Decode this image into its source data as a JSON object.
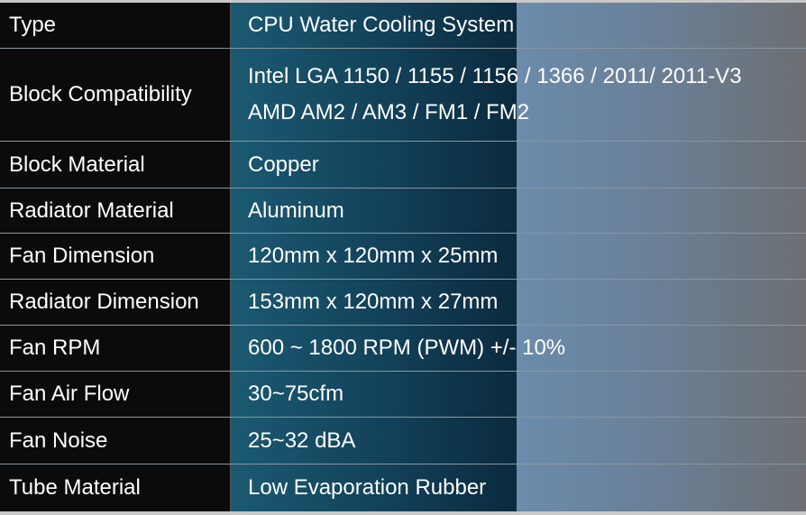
{
  "table": {
    "rows": [
      {
        "label": "Type",
        "lines": [
          "CPU Water Cooling System"
        ]
      },
      {
        "label": "Block Compatibility",
        "lines": [
          "Intel LGA 1150 / 1155 / 1156 / 1366 / 2011/ 2011-V3",
          "AMD AM2 / AM3 / FM1 / FM2"
        ]
      },
      {
        "label": "Block Material",
        "lines": [
          "Copper"
        ]
      },
      {
        "label": "Radiator Material",
        "lines": [
          "Aluminum"
        ]
      },
      {
        "label": "Fan Dimension",
        "lines": [
          "120mm x 120mm x 25mm"
        ]
      },
      {
        "label": "Radiator Dimension",
        "lines": [
          "153mm x 120mm x 27mm"
        ]
      },
      {
        "label": "Fan RPM",
        "lines": [
          "600 ~ 1800 RPM (PWM) +/- 10%"
        ]
      },
      {
        "label": "Fan Air Flow",
        "lines": [
          "30~75cfm"
        ]
      },
      {
        "label": "Fan Noise",
        "lines": [
          "25~32 dBA"
        ]
      },
      {
        "label": "Tube Material",
        "lines": [
          "Low Evaporation Rubber"
        ]
      }
    ]
  }
}
